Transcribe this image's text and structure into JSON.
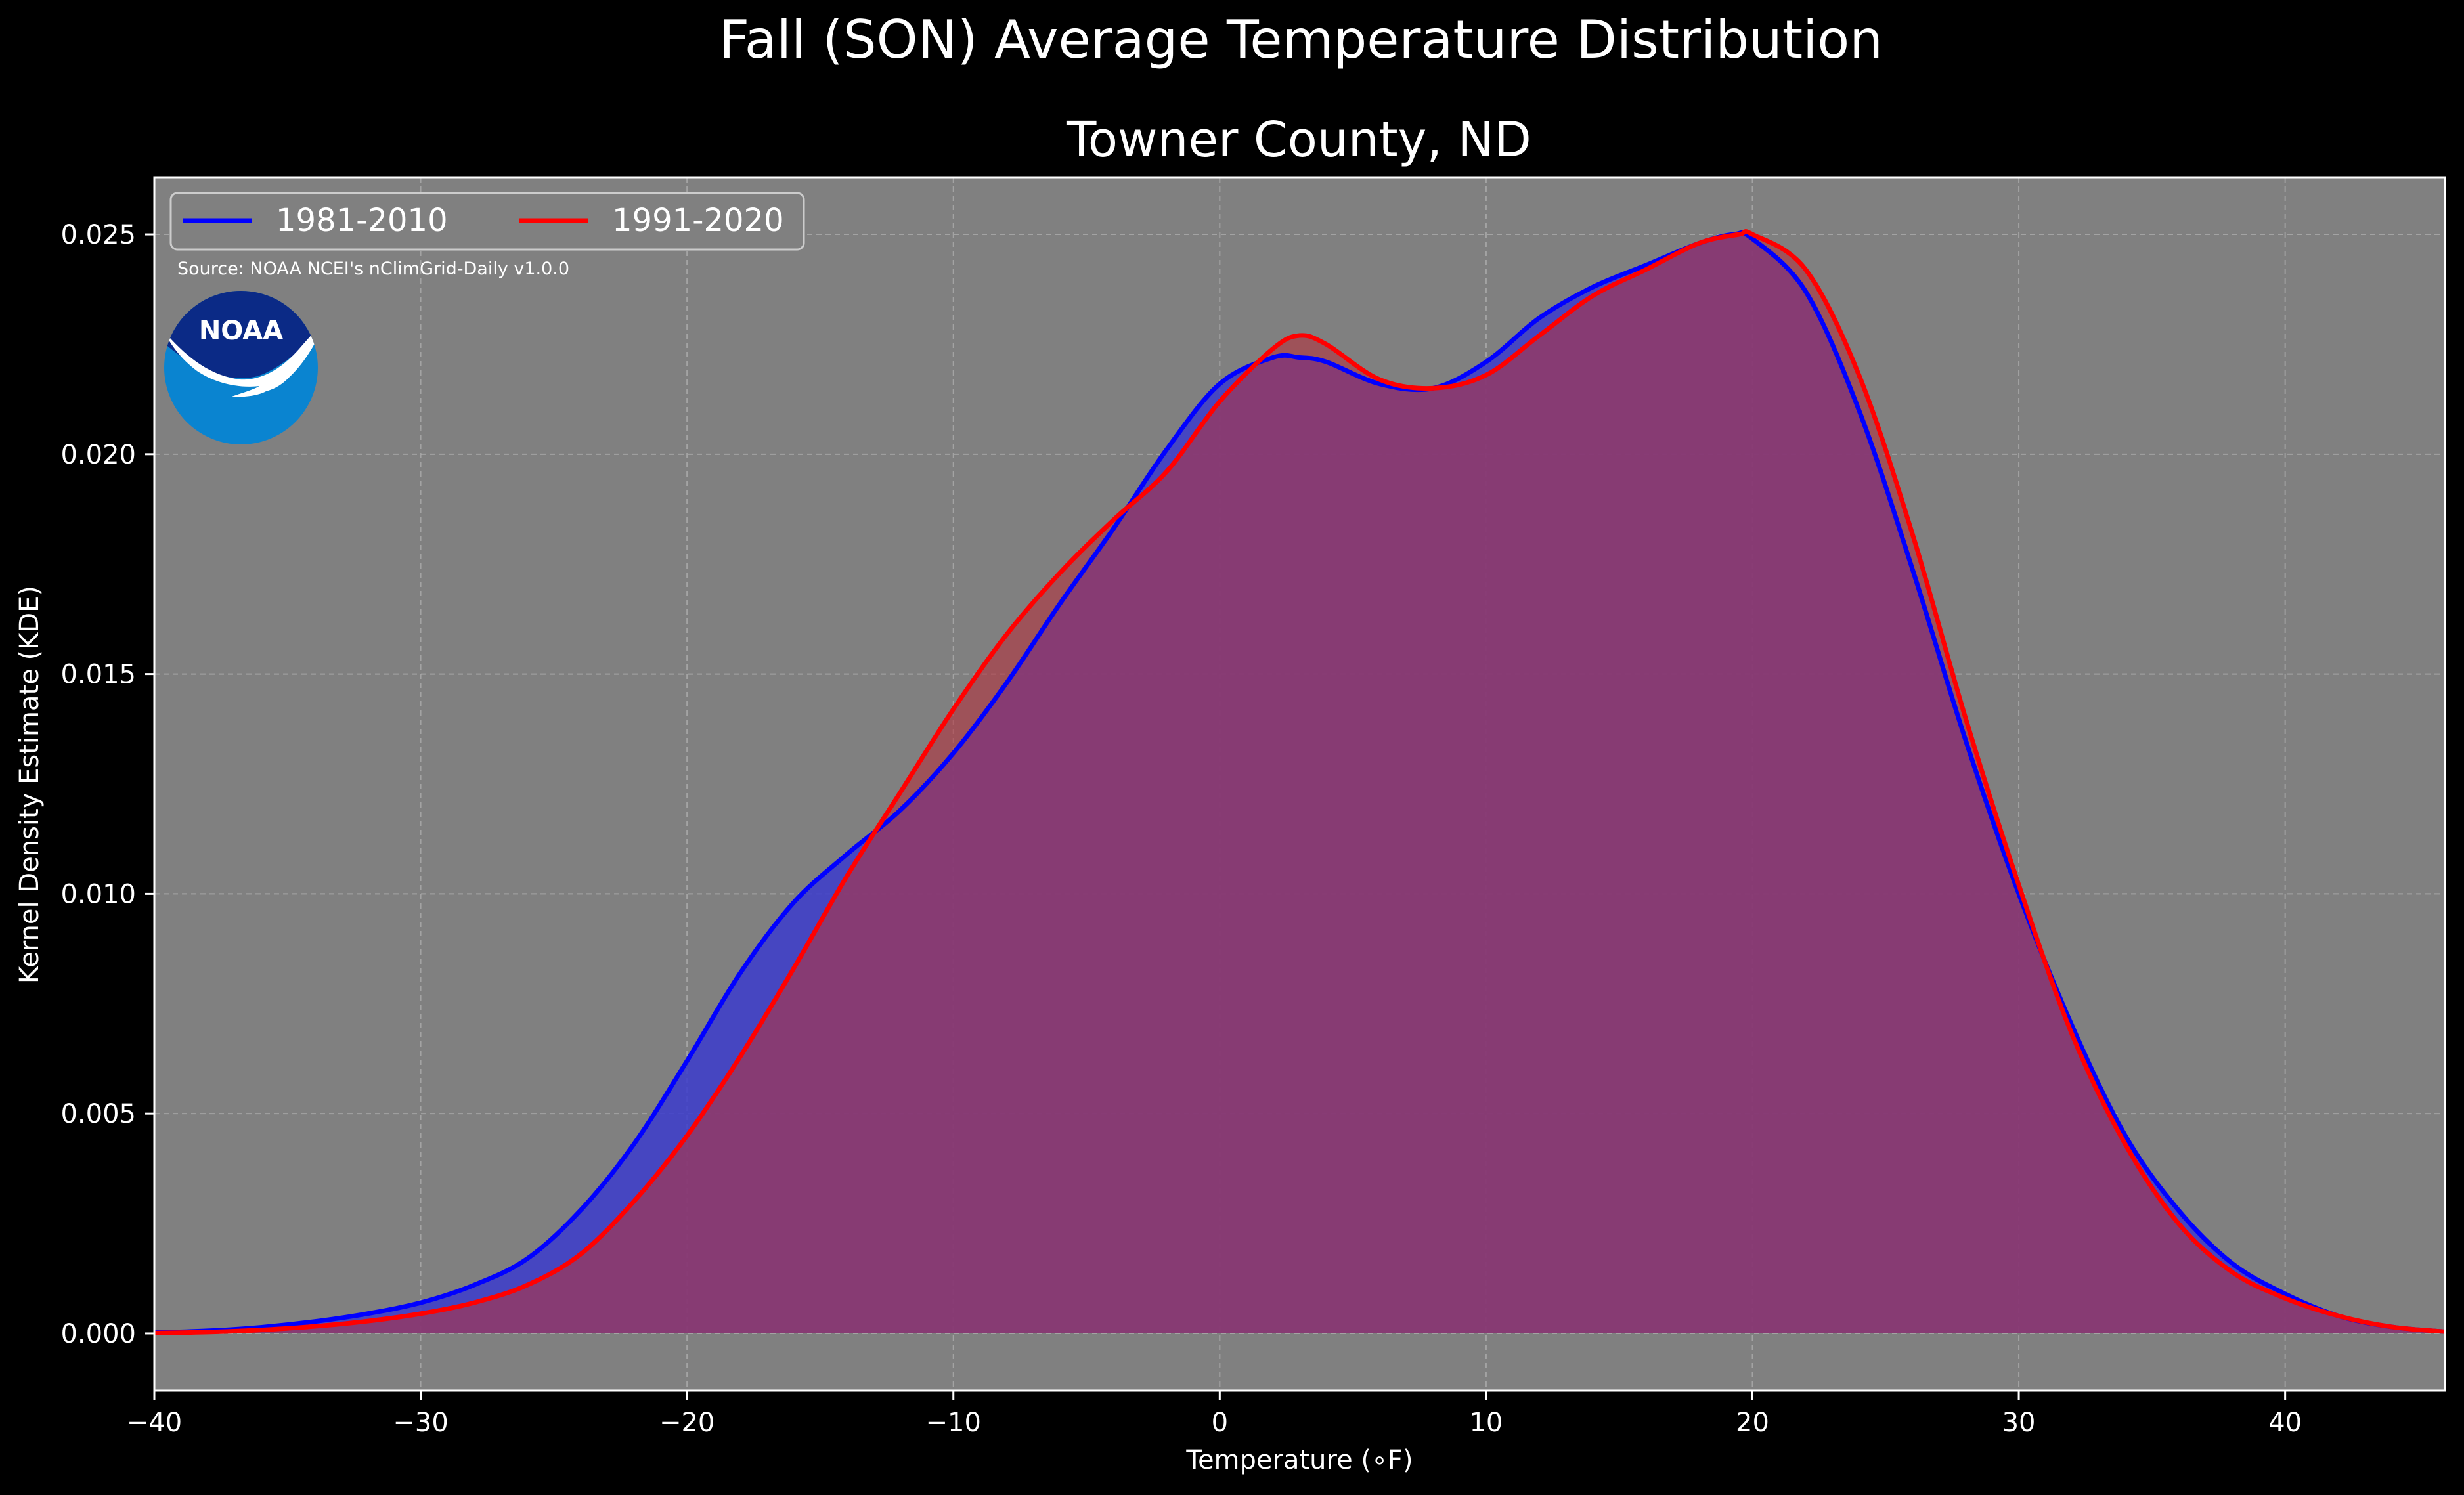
{
  "chart_data": {
    "type": "area",
    "title": "Fall (SON) Average Temperature Distribution",
    "subtitle": "Towner County, ND",
    "xlabel": "Temperature (∘F)",
    "ylabel": "Kernel Density Estimate (KDE)",
    "xlim": [
      -40,
      46
    ],
    "ylim": [
      -0.0013,
      0.0263
    ],
    "xticks": [
      -40,
      -30,
      -20,
      -10,
      0,
      10,
      20,
      30,
      40
    ],
    "xtick_labels": [
      "−40",
      "−30",
      "−20",
      "−10",
      "0",
      "10",
      "20",
      "30",
      "40"
    ],
    "yticks": [
      0.0,
      0.005,
      0.01,
      0.015,
      0.02,
      0.025
    ],
    "ytick_labels": [
      "0.000",
      "0.005",
      "0.010",
      "0.015",
      "0.020",
      "0.025"
    ],
    "grid": true,
    "legend_position": "top-left",
    "source_note": "Source: NOAA NCEI's nClimGrid-Daily v1.0.0",
    "logo_text": "NOAA",
    "background_color": "#000000",
    "plot_background_color": "#808080",
    "series": [
      {
        "name": "1981-2010",
        "color": "#0000ff",
        "fill_color": "#3c3ccc",
        "x": [
          -40,
          -38,
          -36,
          -34,
          -32,
          -30,
          -28,
          -26,
          -24,
          -22,
          -20,
          -18,
          -16,
          -14,
          -12,
          -10,
          -8,
          -6,
          -4,
          -2,
          0,
          2,
          3,
          4,
          6,
          8,
          10,
          12,
          14,
          16,
          18,
          19.3,
          20,
          22,
          24,
          26,
          28,
          30,
          32,
          34,
          36,
          38,
          40,
          42,
          44,
          46
        ],
        "y": [
          2e-05,
          6e-05,
          0.00014,
          0.00027,
          0.00045,
          0.0007,
          0.0011,
          0.0017,
          0.0028,
          0.0043,
          0.0062,
          0.0082,
          0.0098,
          0.0109,
          0.0119,
          0.0132,
          0.0148,
          0.0166,
          0.0183,
          0.0201,
          0.0216,
          0.0222,
          0.0222,
          0.0221,
          0.0216,
          0.0215,
          0.0221,
          0.0231,
          0.0238,
          0.0243,
          0.0248,
          0.025,
          0.0249,
          0.0237,
          0.021,
          0.0174,
          0.0135,
          0.01,
          0.007,
          0.0045,
          0.0028,
          0.0016,
          0.0009,
          0.0004,
          0.00015,
          4e-05
        ]
      },
      {
        "name": "1991-2020",
        "color": "#ff0000",
        "fill_color": "#b33340",
        "x": [
          -40,
          -38,
          -36,
          -34,
          -32,
          -30,
          -28,
          -26,
          -24,
          -22,
          -20,
          -18,
          -16,
          -14,
          -12,
          -10,
          -8,
          -6,
          -4,
          -2,
          0,
          2,
          3,
          4,
          6,
          8,
          10,
          12,
          14,
          16,
          18,
          19.5,
          20,
          22,
          24,
          26,
          28,
          30,
          32,
          34,
          36,
          38,
          40,
          42,
          44,
          46
        ],
        "y": [
          1e-05,
          3e-05,
          8e-05,
          0.00016,
          0.00028,
          0.00045,
          0.0007,
          0.0011,
          0.0018,
          0.003,
          0.0045,
          0.0063,
          0.0083,
          0.0104,
          0.0123,
          0.0142,
          0.0159,
          0.0173,
          0.0185,
          0.0196,
          0.0212,
          0.0224,
          0.0227,
          0.0225,
          0.0217,
          0.0215,
          0.0218,
          0.0227,
          0.0236,
          0.0242,
          0.0248,
          0.025,
          0.025,
          0.0242,
          0.0218,
          0.0182,
          0.014,
          0.0102,
          0.0068,
          0.0043,
          0.0025,
          0.0014,
          0.0008,
          0.0004,
          0.00015,
          4e-05
        ]
      }
    ]
  }
}
